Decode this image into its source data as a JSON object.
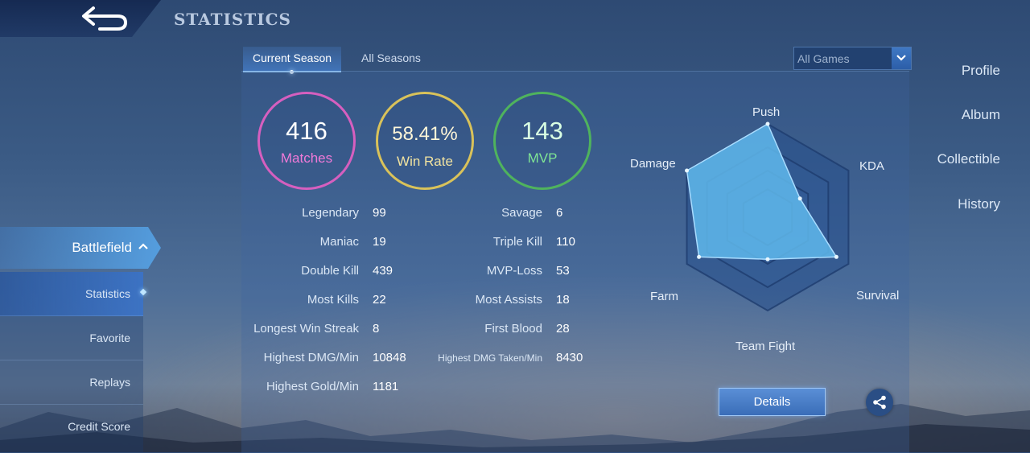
{
  "header": {
    "title": "STATISTICS"
  },
  "sidebar": {
    "items": [
      "Profile",
      "Album",
      "Collectible",
      "History"
    ],
    "battlefield": "Battlefield",
    "submenu": [
      "Statistics",
      "Favorite",
      "Replays",
      "Credit Score"
    ]
  },
  "tabs": [
    "Current Season",
    "All Seasons"
  ],
  "filter": {
    "selected": "All Games"
  },
  "summary": {
    "matches": {
      "value": "416",
      "label": "Matches"
    },
    "win_rate": {
      "value": "58.41%",
      "label": "Win Rate"
    },
    "mvp": {
      "value": "143",
      "label": "MVP"
    }
  },
  "stats_left": [
    {
      "label": "Legendary",
      "value": "99"
    },
    {
      "label": "Maniac",
      "value": "19"
    },
    {
      "label": "Double Kill",
      "value": "439"
    },
    {
      "label": "Most Kills",
      "value": "22"
    },
    {
      "label": "Longest Win Streak",
      "value": "8"
    },
    {
      "label": "Highest DMG/Min",
      "value": "10848"
    },
    {
      "label": "Highest Gold/Min",
      "value": "1181"
    }
  ],
  "stats_right": [
    {
      "label": "Savage",
      "value": "6"
    },
    {
      "label": "Triple Kill",
      "value": "110"
    },
    {
      "label": "MVP-Loss",
      "value": "53"
    },
    {
      "label": "Most Assists",
      "value": "18"
    },
    {
      "label": "First Blood",
      "value": "28"
    },
    {
      "label": "Highest DMG Taken/Min",
      "value": "8430"
    }
  ],
  "radar": {
    "axes": [
      "Push",
      "KDA",
      "Survival",
      "Team Fight",
      "Farm",
      "Damage"
    ],
    "values": [
      1.0,
      0.4,
      0.85,
      0.45,
      0.85,
      1.0
    ]
  },
  "actions": {
    "details": "Details"
  },
  "colors": {
    "matches": "#d65fbf",
    "win_rate": "#d9c25a",
    "mvp": "#4fb35d",
    "radar_fill": "#5fb8ec"
  }
}
